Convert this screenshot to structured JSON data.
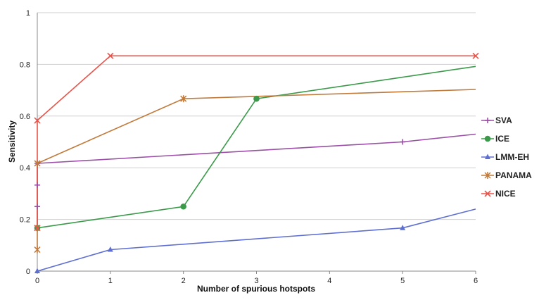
{
  "chart_data": {
    "type": "line",
    "xlabel": "Number of spurious hotspots",
    "ylabel": "Sensitivity",
    "xlim": [
      0,
      6
    ],
    "ylim": [
      0,
      1
    ],
    "x_ticks": [
      "0",
      "1",
      "2",
      "3",
      "4",
      "5",
      "6"
    ],
    "y_ticks": [
      "0",
      "0.2",
      "0.4",
      "0.6",
      "0.8",
      "1"
    ],
    "grid": "horizontal",
    "legend_position": "right",
    "series": [
      {
        "name": "SVA",
        "color": "#9b4fa6",
        "marker": "plus",
        "points": [
          [
            0,
            0.167
          ],
          [
            0,
            0.25
          ],
          [
            0,
            0.333
          ],
          [
            0,
            0.417
          ],
          [
            5,
            0.5
          ],
          [
            6,
            0.53
          ]
        ]
      },
      {
        "name": "ICE",
        "color": "#3a9a4a",
        "marker": "circle",
        "points": [
          [
            0,
            0.167
          ],
          [
            2,
            0.25
          ],
          [
            3,
            0.667
          ],
          [
            6,
            0.792
          ]
        ]
      },
      {
        "name": "LMM-EH",
        "color": "#5e6fd0",
        "marker": "triangle",
        "points": [
          [
            0,
            0.0
          ],
          [
            1,
            0.083
          ],
          [
            5,
            0.167
          ],
          [
            6,
            0.24
          ]
        ]
      },
      {
        "name": "PANAMA",
        "color": "#c07a3a",
        "marker": "star",
        "points": [
          [
            0,
            0.083
          ],
          [
            0,
            0.167
          ],
          [
            0,
            0.417
          ],
          [
            2,
            0.667
          ],
          [
            6,
            0.703
          ]
        ]
      },
      {
        "name": "NICE",
        "color": "#e8534a",
        "marker": "cross",
        "points": [
          [
            0,
            0.167
          ],
          [
            0,
            0.583
          ],
          [
            1,
            0.833
          ],
          [
            6,
            0.833
          ]
        ]
      }
    ]
  }
}
